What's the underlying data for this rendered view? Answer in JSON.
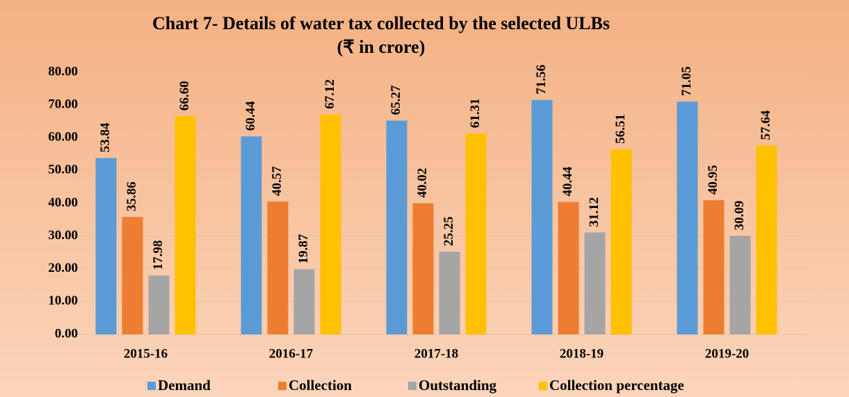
{
  "chart_data": {
    "type": "bar",
    "title": "Chart 7- Details of water tax collected by the selected ULBs",
    "subtitle": "(₹ in crore)",
    "categories": [
      "2015-16",
      "2016-17",
      "2017-18",
      "2018-19",
      "2019-20"
    ],
    "series": [
      {
        "name": "Demand",
        "color": "#5b9bd5",
        "values": [
          53.84,
          60.44,
          65.27,
          71.56,
          71.05
        ],
        "value_labels": [
          "53.84",
          "60.44",
          "65.27",
          "71.56",
          "71.05"
        ]
      },
      {
        "name": "Collection",
        "color": "#ed7d31",
        "values": [
          35.86,
          40.57,
          40.02,
          40.44,
          40.95
        ],
        "value_labels": [
          "35.86",
          "40.57",
          "40.02",
          "40.44",
          "40.95"
        ]
      },
      {
        "name": "Outstanding",
        "color": "#a5a5a5",
        "values": [
          17.98,
          19.87,
          25.25,
          31.12,
          30.09
        ],
        "value_labels": [
          "17.98",
          "19.87",
          "25.25",
          "31.12",
          "30.09"
        ]
      },
      {
        "name": "Collection percentage",
        "color": "#ffc000",
        "values": [
          66.6,
          67.12,
          61.31,
          56.51,
          57.64
        ],
        "value_labels": [
          "66.60",
          "67.12",
          "61.31",
          "56.51",
          "57.64"
        ]
      }
    ],
    "ylim": [
      0,
      80
    ],
    "yticks": [
      {
        "value": 0,
        "label": "0.00"
      },
      {
        "value": 10,
        "label": "10.00"
      },
      {
        "value": 20,
        "label": "20.00"
      },
      {
        "value": 30,
        "label": "30.00"
      },
      {
        "value": 40,
        "label": "40.00"
      },
      {
        "value": 50,
        "label": "50.00"
      },
      {
        "value": 60,
        "label": "60.00"
      },
      {
        "value": 70,
        "label": "70.00"
      },
      {
        "value": 80,
        "label": "80.00"
      }
    ],
    "grid": true,
    "legend": "bottom"
  }
}
